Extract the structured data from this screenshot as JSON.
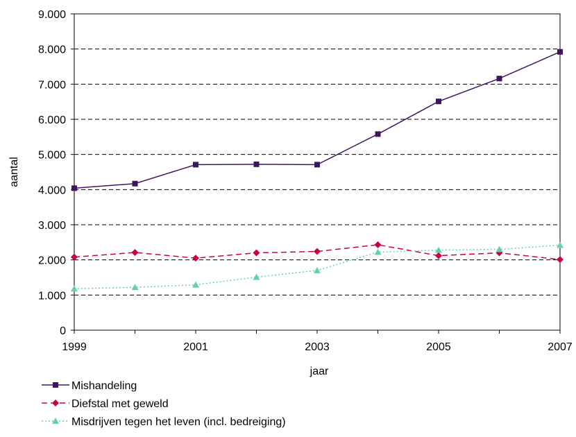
{
  "chart_data": {
    "type": "line",
    "title": "",
    "xlabel": "jaar",
    "ylabel": "aantal",
    "x": [
      1999,
      2000,
      2001,
      2002,
      2003,
      2004,
      2005,
      2006,
      2007
    ],
    "x_tick_labels": [
      "1999",
      "2001",
      "2003",
      "2005",
      "2007"
    ],
    "y_tick_labels": [
      "0",
      "1.000",
      "2.000",
      "3.000",
      "4.000",
      "5.000",
      "6.000",
      "7.000",
      "8.000",
      "9.000"
    ],
    "xlim": [
      1999,
      2007
    ],
    "ylim": [
      0,
      9000
    ],
    "grid": "horizontal dashed",
    "legend_position": "bottom-left",
    "series": [
      {
        "name": "Mishandeling",
        "color": "#3f1560",
        "marker": "square",
        "line": "solid",
        "values": [
          4040,
          4170,
          4710,
          4720,
          4710,
          5580,
          6510,
          7160,
          7920
        ]
      },
      {
        "name": "Diefstal met geweld",
        "color": "#c8004a",
        "marker": "diamond",
        "line": "dashed",
        "values": [
          2080,
          2210,
          2050,
          2200,
          2240,
          2430,
          2120,
          2200,
          2010
        ]
      },
      {
        "name": "Misdrijven tegen het leven (incl. bedreiging)",
        "color": "#66d1a4",
        "marker": "triangle",
        "line": "dotted",
        "values": [
          1180,
          1220,
          1290,
          1510,
          1700,
          2220,
          2280,
          2300,
          2420
        ]
      }
    ]
  }
}
